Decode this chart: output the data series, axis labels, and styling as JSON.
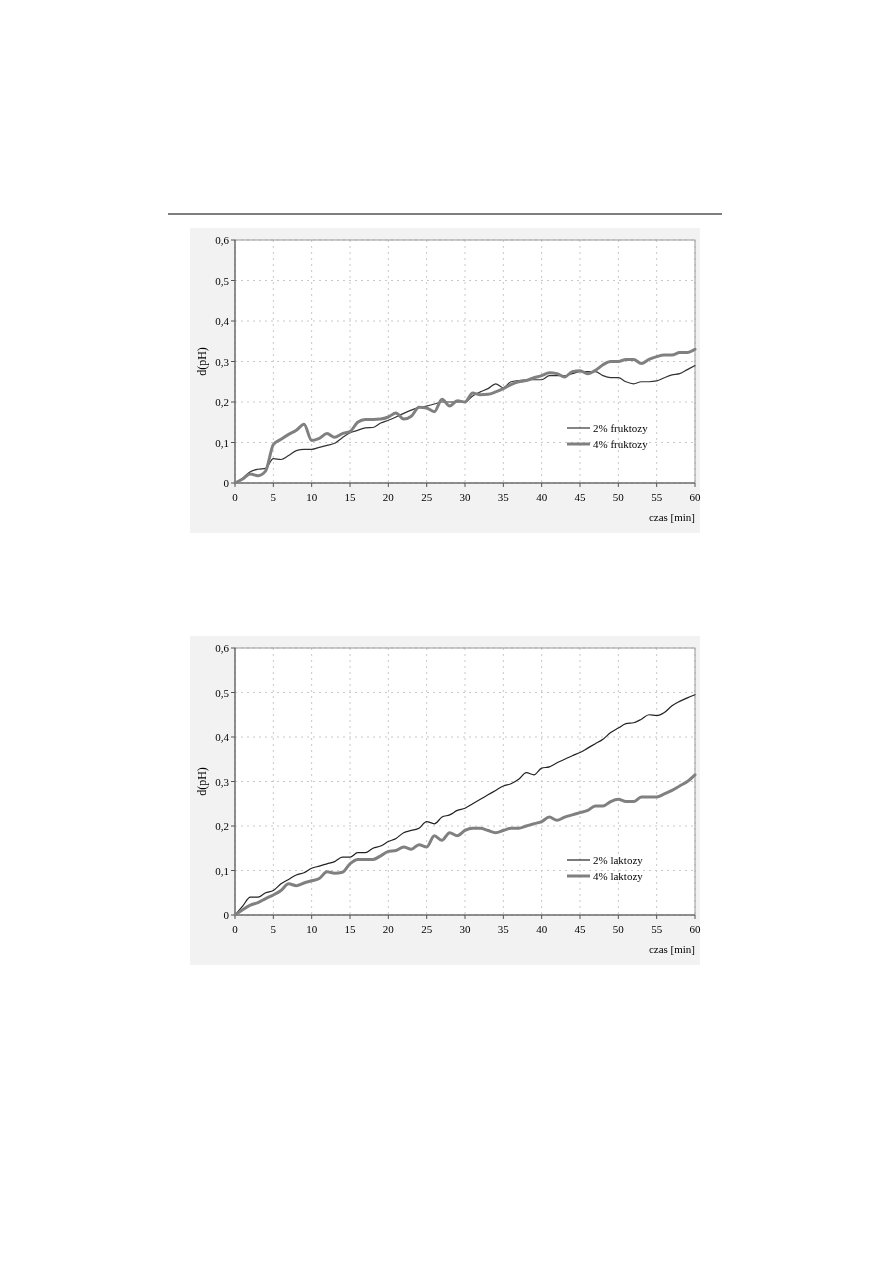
{
  "chart_data": [
    {
      "type": "line",
      "xlabel": "czas [min]",
      "ylabel": "d(pH)",
      "x": [
        0,
        1,
        2,
        3,
        4,
        5,
        6,
        7,
        8,
        9,
        10,
        11,
        12,
        13,
        14,
        15,
        16,
        17,
        18,
        19,
        20,
        21,
        22,
        23,
        24,
        25,
        26,
        27,
        28,
        29,
        30,
        31,
        32,
        33,
        34,
        35,
        36,
        37,
        38,
        39,
        40,
        41,
        42,
        43,
        44,
        45,
        46,
        47,
        48,
        49,
        50,
        51,
        52,
        53,
        54,
        55,
        56,
        57,
        58,
        59,
        60
      ],
      "series": [
        {
          "name": "2% fruktozy",
          "color": "#333333",
          "values": [
            0,
            0.012,
            0.028,
            0.034,
            0.036,
            0.06,
            0.058,
            0.068,
            0.08,
            0.083,
            0.083,
            0.088,
            0.093,
            0.098,
            0.112,
            0.124,
            0.13,
            0.136,
            0.137,
            0.148,
            0.155,
            0.163,
            0.172,
            0.18,
            0.186,
            0.19,
            0.195,
            0.2,
            0.2,
            0.2,
            0.2,
            0.215,
            0.225,
            0.233,
            0.245,
            0.235,
            0.25,
            0.253,
            0.255,
            0.255,
            0.255,
            0.265,
            0.265,
            0.265,
            0.27,
            0.275,
            0.275,
            0.275,
            0.265,
            0.26,
            0.26,
            0.25,
            0.245,
            0.25,
            0.25,
            0.252,
            0.26,
            0.267,
            0.27,
            0.28,
            0.29
          ]
        },
        {
          "name": "4% fruktozy",
          "color": "#808080",
          "values": [
            0,
            0.01,
            0.022,
            0.018,
            0.03,
            0.095,
            0.108,
            0.12,
            0.13,
            0.145,
            0.105,
            0.11,
            0.122,
            0.113,
            0.122,
            0.127,
            0.15,
            0.157,
            0.157,
            0.158,
            0.163,
            0.173,
            0.158,
            0.165,
            0.187,
            0.185,
            0.176,
            0.207,
            0.19,
            0.203,
            0.2,
            0.222,
            0.218,
            0.219,
            0.225,
            0.233,
            0.243,
            0.25,
            0.253,
            0.26,
            0.265,
            0.272,
            0.27,
            0.262,
            0.275,
            0.277,
            0.27,
            0.278,
            0.292,
            0.3,
            0.3,
            0.305,
            0.305,
            0.295,
            0.305,
            0.312,
            0.316,
            0.316,
            0.322,
            0.322,
            0.33
          ]
        }
      ],
      "xlim": [
        0,
        60
      ],
      "xticks": [
        0,
        5,
        10,
        15,
        20,
        25,
        30,
        35,
        40,
        45,
        50,
        55,
        60
      ],
      "ylim": [
        0,
        0.6
      ],
      "yticks": [
        0,
        {
          "value": 0.1,
          "label": "0,1"
        },
        {
          "value": 0.2,
          "label": "0,2"
        },
        {
          "value": 0.3,
          "label": "0,3"
        },
        {
          "value": 0.4,
          "label": "0,4"
        },
        {
          "value": 0.5,
          "label": "0,5"
        },
        {
          "value": 0.6,
          "label": "0,6"
        }
      ],
      "grid": true,
      "legend": "bottom right"
    },
    {
      "type": "line",
      "xlabel": "czas [min]",
      "ylabel": "d(pH)",
      "x": [
        0,
        1,
        2,
        3,
        4,
        5,
        6,
        7,
        8,
        9,
        10,
        11,
        12,
        13,
        14,
        15,
        16,
        17,
        18,
        19,
        20,
        21,
        22,
        23,
        24,
        25,
        26,
        27,
        28,
        29,
        30,
        31,
        32,
        33,
        34,
        35,
        36,
        37,
        38,
        39,
        40,
        41,
        42,
        43,
        44,
        45,
        46,
        47,
        48,
        49,
        50,
        51,
        52,
        53,
        54,
        55,
        56,
        57,
        58,
        59,
        60
      ],
      "series": [
        {
          "name": "2% laktozy",
          "color": "#222222",
          "values": [
            0,
            0.02,
            0.04,
            0.04,
            0.05,
            0.055,
            0.07,
            0.08,
            0.09,
            0.095,
            0.105,
            0.11,
            0.115,
            0.12,
            0.13,
            0.13,
            0.14,
            0.14,
            0.15,
            0.155,
            0.165,
            0.172,
            0.185,
            0.19,
            0.195,
            0.21,
            0.205,
            0.22,
            0.225,
            0.235,
            0.24,
            0.25,
            0.26,
            0.27,
            0.28,
            0.29,
            0.295,
            0.305,
            0.32,
            0.315,
            0.33,
            0.333,
            0.342,
            0.35,
            0.358,
            0.365,
            0.375,
            0.385,
            0.395,
            0.41,
            0.42,
            0.43,
            0.432,
            0.44,
            0.45,
            0.448,
            0.455,
            0.47,
            0.48,
            0.488,
            0.495
          ]
        },
        {
          "name": "4% laktozy",
          "color": "#808080",
          "values": [
            0,
            0.012,
            0.022,
            0.028,
            0.037,
            0.045,
            0.055,
            0.07,
            0.066,
            0.072,
            0.077,
            0.082,
            0.097,
            0.094,
            0.096,
            0.115,
            0.125,
            0.125,
            0.125,
            0.133,
            0.143,
            0.145,
            0.153,
            0.148,
            0.158,
            0.153,
            0.178,
            0.168,
            0.185,
            0.178,
            0.19,
            0.195,
            0.195,
            0.19,
            0.185,
            0.19,
            0.195,
            0.195,
            0.2,
            0.205,
            0.21,
            0.22,
            0.213,
            0.22,
            0.225,
            0.23,
            0.235,
            0.245,
            0.245,
            0.255,
            0.26,
            0.255,
            0.255,
            0.265,
            0.265,
            0.265,
            0.272,
            0.28,
            0.29,
            0.3,
            0.315
          ]
        }
      ],
      "xlim": [
        0,
        60
      ],
      "xticks": [
        0,
        5,
        10,
        15,
        20,
        25,
        30,
        35,
        40,
        45,
        50,
        55,
        60
      ],
      "ylim": [
        0,
        0.6
      ],
      "yticks": [
        0,
        {
          "value": 0.1,
          "label": "0,1"
        },
        {
          "value": 0.2,
          "label": "0,2"
        },
        {
          "value": 0.3,
          "label": "0,3"
        },
        {
          "value": 0.4,
          "label": "0,4"
        },
        {
          "value": 0.5,
          "label": "0,5"
        },
        {
          "value": 0.6,
          "label": "0,6"
        }
      ],
      "grid": true,
      "legend": "bottom right"
    }
  ]
}
